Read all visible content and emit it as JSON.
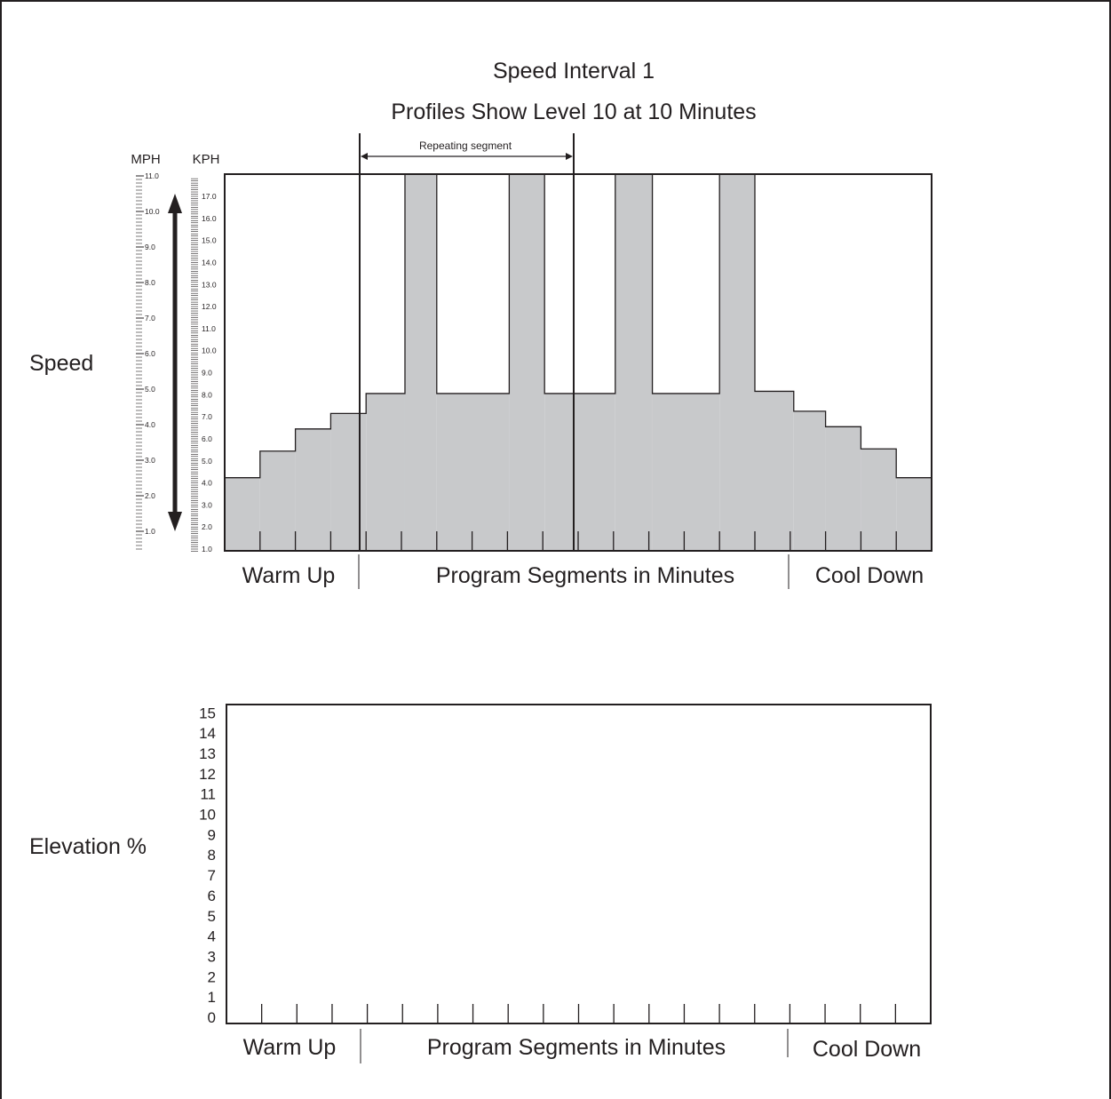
{
  "title": "Speed Interval 1",
  "subtitle": "Profiles Show Level 10 at 10 Minutes",
  "repeating_label": "Repeating segment",
  "colors": {
    "fill": "#c8c9cb",
    "ink": "#231f20",
    "background": "#ffffff"
  },
  "chart_data": [
    {
      "type": "area",
      "ylabel": "Speed",
      "mph_label": "MPH",
      "kph_label": "KPH",
      "mph_ticks": [
        "1.0",
        "2.0",
        "3.0",
        "4.0",
        "5.0",
        "6.0",
        "7.0",
        "8.0",
        "9.0",
        "10.0",
        "11.0"
      ],
      "kph_ticks": [
        "1.0",
        "2.0",
        "3.0",
        "4.0",
        "5.0",
        "6.0",
        "7.0",
        "8.0",
        "9.0",
        "10.0",
        "11.0",
        "12.0",
        "13.0",
        "14.0",
        "15.0",
        "16.0",
        "17.0"
      ],
      "segment_labels": [
        "Warm Up",
        "Program Segments in Minutes",
        "Cool Down"
      ],
      "ylim_kph": [
        1.0,
        18.0
      ],
      "segments": 20,
      "repeating_segment": [
        4,
        10
      ],
      "values_kph": [
        4.3,
        5.5,
        6.5,
        7.2,
        8.1,
        18.0,
        8.1,
        8.1,
        18.0,
        8.1,
        8.1,
        18.0,
        8.1,
        8.1,
        18.0,
        8.2,
        7.3,
        6.6,
        5.6,
        4.3
      ],
      "boundaries": [
        {
          "start": 0,
          "end": 1,
          "value_kph": 4.3
        },
        {
          "start": 1,
          "end": 2,
          "value_kph": 5.5
        },
        {
          "start": 2,
          "end": 3,
          "value_kph": 6.5
        },
        {
          "start": 3,
          "end": 4,
          "value_kph": 7.2
        },
        {
          "start": 4,
          "end": 5.1,
          "value_kph": 8.1
        },
        {
          "start": 5.1,
          "end": 6.0,
          "value_kph": 18.0
        },
        {
          "start": 6.0,
          "end": 8.05,
          "value_kph": 8.1
        },
        {
          "start": 8.05,
          "end": 9.05,
          "value_kph": 18.0
        },
        {
          "start": 9.05,
          "end": 11.05,
          "value_kph": 8.1
        },
        {
          "start": 11.05,
          "end": 12.1,
          "value_kph": 18.0
        },
        {
          "start": 12.1,
          "end": 14.0,
          "value_kph": 8.1
        },
        {
          "start": 14.0,
          "end": 15.0,
          "value_kph": 18.0
        },
        {
          "start": 15.0,
          "end": 16.1,
          "value_kph": 8.2
        },
        {
          "start": 16.1,
          "end": 17.0,
          "value_kph": 7.3
        },
        {
          "start": 17.0,
          "end": 18.0,
          "value_kph": 6.6
        },
        {
          "start": 18.0,
          "end": 19.0,
          "value_kph": 5.6
        },
        {
          "start": 19.0,
          "end": 20.0,
          "value_kph": 4.3
        }
      ]
    },
    {
      "type": "area",
      "ylabel": "Elevation %",
      "y_ticks": [
        "0",
        "1",
        "2",
        "3",
        "4",
        "5",
        "6",
        "7",
        "8",
        "9",
        "10",
        "11",
        "12",
        "13",
        "14",
        "15"
      ],
      "ylim": [
        0,
        15
      ],
      "segments": 20,
      "segment_labels": [
        "Warm Up",
        "Program Segments in Minutes",
        "Cool Down"
      ],
      "values": []
    }
  ]
}
